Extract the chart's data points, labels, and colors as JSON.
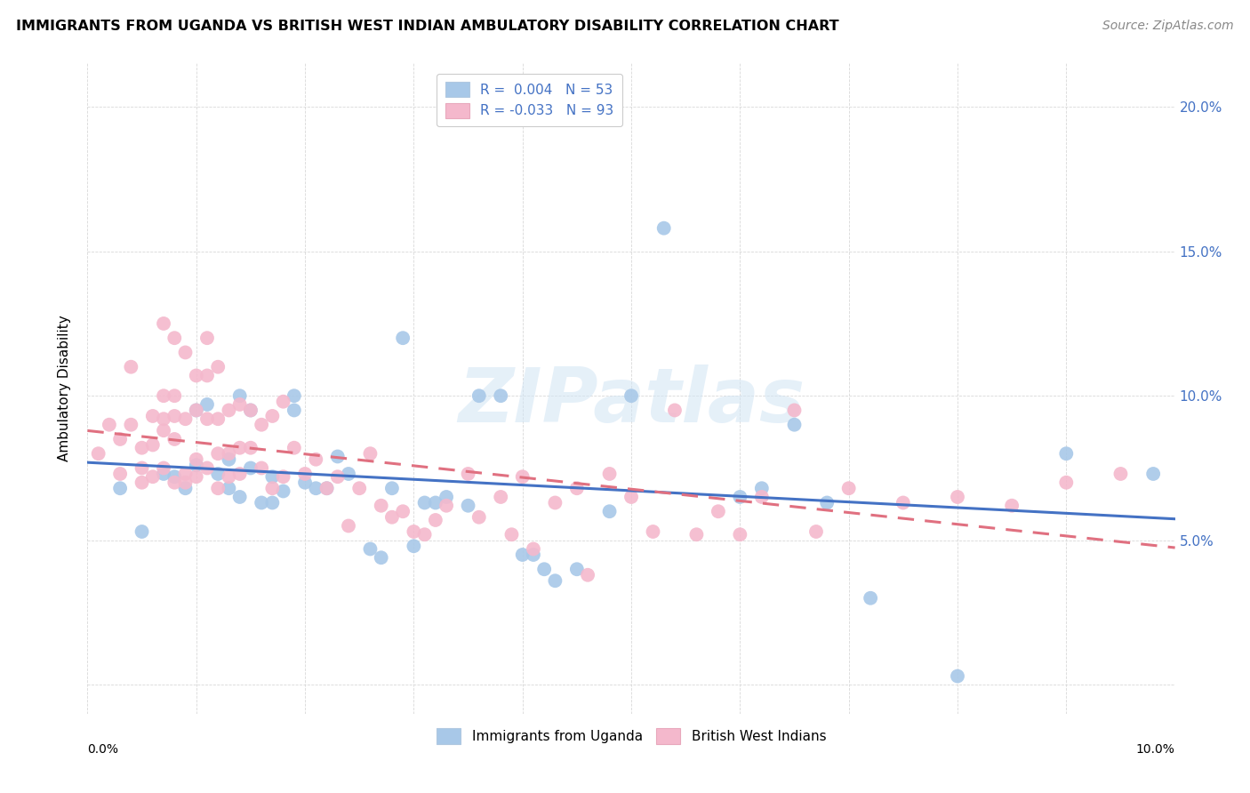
{
  "title": "IMMIGRANTS FROM UGANDA VS BRITISH WEST INDIAN AMBULATORY DISABILITY CORRELATION CHART",
  "source": "Source: ZipAtlas.com",
  "ylabel": "Ambulatory Disability",
  "y_ticks": [
    0.0,
    0.05,
    0.1,
    0.15,
    0.2
  ],
  "y_tick_labels": [
    "",
    "5.0%",
    "10.0%",
    "15.0%",
    "20.0%"
  ],
  "x_range": [
    0.0,
    0.1
  ],
  "y_range": [
    -0.01,
    0.215
  ],
  "watermark": "ZIPatlas",
  "uganda_color": "#a8c8e8",
  "bwi_color": "#f4b8cc",
  "uganda_line_color": "#4472c4",
  "bwi_line_color": "#e07080",
  "uganda_scatter": [
    [
      0.003,
      0.068
    ],
    [
      0.005,
      0.053
    ],
    [
      0.007,
      0.073
    ],
    [
      0.008,
      0.072
    ],
    [
      0.009,
      0.068
    ],
    [
      0.01,
      0.076
    ],
    [
      0.01,
      0.095
    ],
    [
      0.011,
      0.097
    ],
    [
      0.012,
      0.073
    ],
    [
      0.013,
      0.068
    ],
    [
      0.013,
      0.078
    ],
    [
      0.014,
      0.065
    ],
    [
      0.014,
      0.1
    ],
    [
      0.015,
      0.095
    ],
    [
      0.015,
      0.075
    ],
    [
      0.016,
      0.063
    ],
    [
      0.017,
      0.063
    ],
    [
      0.017,
      0.072
    ],
    [
      0.018,
      0.067
    ],
    [
      0.019,
      0.1
    ],
    [
      0.019,
      0.095
    ],
    [
      0.02,
      0.07
    ],
    [
      0.021,
      0.068
    ],
    [
      0.022,
      0.068
    ],
    [
      0.023,
      0.079
    ],
    [
      0.024,
      0.073
    ],
    [
      0.026,
      0.047
    ],
    [
      0.027,
      0.044
    ],
    [
      0.028,
      0.068
    ],
    [
      0.029,
      0.12
    ],
    [
      0.03,
      0.048
    ],
    [
      0.031,
      0.063
    ],
    [
      0.032,
      0.063
    ],
    [
      0.033,
      0.065
    ],
    [
      0.035,
      0.062
    ],
    [
      0.036,
      0.1
    ],
    [
      0.038,
      0.1
    ],
    [
      0.04,
      0.045
    ],
    [
      0.041,
      0.045
    ],
    [
      0.042,
      0.04
    ],
    [
      0.043,
      0.036
    ],
    [
      0.045,
      0.04
    ],
    [
      0.048,
      0.06
    ],
    [
      0.05,
      0.1
    ],
    [
      0.053,
      0.158
    ],
    [
      0.06,
      0.065
    ],
    [
      0.062,
      0.068
    ],
    [
      0.065,
      0.09
    ],
    [
      0.068,
      0.063
    ],
    [
      0.072,
      0.03
    ],
    [
      0.08,
      0.003
    ],
    [
      0.09,
      0.08
    ],
    [
      0.098,
      0.073
    ]
  ],
  "bwi_scatter": [
    [
      0.001,
      0.08
    ],
    [
      0.002,
      0.09
    ],
    [
      0.003,
      0.085
    ],
    [
      0.003,
      0.073
    ],
    [
      0.004,
      0.11
    ],
    [
      0.004,
      0.09
    ],
    [
      0.005,
      0.082
    ],
    [
      0.005,
      0.075
    ],
    [
      0.005,
      0.07
    ],
    [
      0.006,
      0.093
    ],
    [
      0.006,
      0.083
    ],
    [
      0.006,
      0.072
    ],
    [
      0.007,
      0.125
    ],
    [
      0.007,
      0.1
    ],
    [
      0.007,
      0.092
    ],
    [
      0.007,
      0.088
    ],
    [
      0.007,
      0.075
    ],
    [
      0.008,
      0.12
    ],
    [
      0.008,
      0.1
    ],
    [
      0.008,
      0.093
    ],
    [
      0.008,
      0.085
    ],
    [
      0.008,
      0.07
    ],
    [
      0.009,
      0.115
    ],
    [
      0.009,
      0.092
    ],
    [
      0.009,
      0.073
    ],
    [
      0.009,
      0.07
    ],
    [
      0.01,
      0.107
    ],
    [
      0.01,
      0.095
    ],
    [
      0.01,
      0.078
    ],
    [
      0.01,
      0.072
    ],
    [
      0.011,
      0.12
    ],
    [
      0.011,
      0.107
    ],
    [
      0.011,
      0.092
    ],
    [
      0.011,
      0.075
    ],
    [
      0.012,
      0.11
    ],
    [
      0.012,
      0.092
    ],
    [
      0.012,
      0.08
    ],
    [
      0.012,
      0.068
    ],
    [
      0.013,
      0.095
    ],
    [
      0.013,
      0.08
    ],
    [
      0.013,
      0.072
    ],
    [
      0.014,
      0.097
    ],
    [
      0.014,
      0.082
    ],
    [
      0.014,
      0.073
    ],
    [
      0.015,
      0.095
    ],
    [
      0.015,
      0.082
    ],
    [
      0.016,
      0.09
    ],
    [
      0.016,
      0.075
    ],
    [
      0.017,
      0.093
    ],
    [
      0.017,
      0.068
    ],
    [
      0.018,
      0.098
    ],
    [
      0.018,
      0.072
    ],
    [
      0.019,
      0.082
    ],
    [
      0.02,
      0.073
    ],
    [
      0.021,
      0.078
    ],
    [
      0.022,
      0.068
    ],
    [
      0.023,
      0.072
    ],
    [
      0.024,
      0.055
    ],
    [
      0.025,
      0.068
    ],
    [
      0.026,
      0.08
    ],
    [
      0.027,
      0.062
    ],
    [
      0.028,
      0.058
    ],
    [
      0.029,
      0.06
    ],
    [
      0.03,
      0.053
    ],
    [
      0.031,
      0.052
    ],
    [
      0.032,
      0.057
    ],
    [
      0.033,
      0.062
    ],
    [
      0.035,
      0.073
    ],
    [
      0.036,
      0.058
    ],
    [
      0.038,
      0.065
    ],
    [
      0.039,
      0.052
    ],
    [
      0.04,
      0.072
    ],
    [
      0.041,
      0.047
    ],
    [
      0.043,
      0.063
    ],
    [
      0.045,
      0.068
    ],
    [
      0.046,
      0.038
    ],
    [
      0.048,
      0.073
    ],
    [
      0.05,
      0.065
    ],
    [
      0.052,
      0.053
    ],
    [
      0.054,
      0.095
    ],
    [
      0.056,
      0.052
    ],
    [
      0.058,
      0.06
    ],
    [
      0.06,
      0.052
    ],
    [
      0.062,
      0.065
    ],
    [
      0.065,
      0.095
    ],
    [
      0.067,
      0.053
    ],
    [
      0.07,
      0.068
    ],
    [
      0.075,
      0.063
    ],
    [
      0.08,
      0.065
    ],
    [
      0.085,
      0.062
    ],
    [
      0.09,
      0.07
    ],
    [
      0.095,
      0.073
    ]
  ]
}
